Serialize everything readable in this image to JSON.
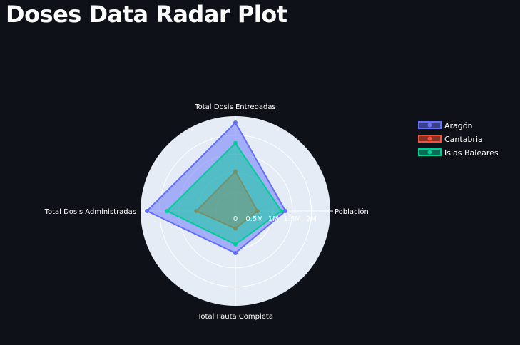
{
  "page": {
    "title": "Doses Data Radar Plot"
  },
  "chart_data": {
    "type": "radar",
    "axes": [
      "Población",
      "Total Dosis Entregadas",
      "Total Dosis Administradas",
      "Total Pauta Completa"
    ],
    "radial_range": [
      0,
      2500000
    ],
    "radial_ticks": [
      0,
      500000,
      1000000,
      1500000,
      2000000
    ],
    "radial_tick_labels": [
      "0",
      "0.5M",
      "1M",
      "1.5M",
      "2M"
    ],
    "series": [
      {
        "name": "Aragón",
        "color": "#636efa",
        "values": [
          1320000,
          2330000,
          2330000,
          1110000
        ]
      },
      {
        "name": "Cantabria",
        "color": "#ef553b",
        "values": [
          580000,
          1040000,
          1030000,
          460000
        ]
      },
      {
        "name": "Islas Baleares",
        "color": "#00cc96",
        "values": [
          1210000,
          1790000,
          1800000,
          880000
        ]
      }
    ],
    "polar_background": "#e5ecf6",
    "grid_color": "#ffffff",
    "grid": true,
    "legend_position": "top-right"
  }
}
